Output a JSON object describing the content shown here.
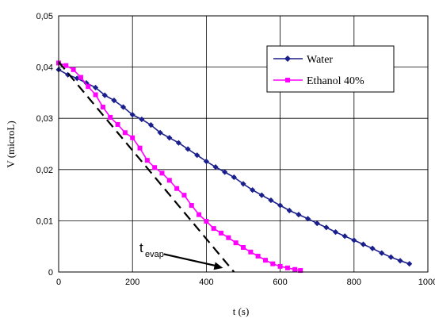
{
  "chart_data": {
    "type": "scatter",
    "xlabel": "t (s)",
    "ylabel": "V (microL)",
    "xlim": [
      0,
      1000
    ],
    "ylim": [
      0,
      0.05
    ],
    "x_ticks": [
      "0",
      "200",
      "400",
      "600",
      "800",
      "1000"
    ],
    "y_ticks": [
      "0",
      "0,01",
      "0,02",
      "0,03",
      "0,04",
      "0,05"
    ],
    "grid": true,
    "legend_position": "top-right",
    "series": [
      {
        "name": "Water",
        "color": "#1a1f8c",
        "marker": "diamond",
        "x": [
          0,
          25,
          50,
          75,
          100,
          125,
          150,
          175,
          200,
          225,
          250,
          275,
          300,
          325,
          350,
          375,
          400,
          425,
          450,
          475,
          500,
          525,
          550,
          575,
          600,
          625,
          650,
          675,
          700,
          725,
          750,
          775,
          800,
          825,
          850,
          875,
          900,
          925,
          950
        ],
        "y": [
          0.0395,
          0.0385,
          0.0378,
          0.0369,
          0.036,
          0.0345,
          0.0335,
          0.0322,
          0.0307,
          0.0298,
          0.0287,
          0.0272,
          0.0262,
          0.0252,
          0.024,
          0.0228,
          0.0216,
          0.0205,
          0.0195,
          0.0185,
          0.0172,
          0.016,
          0.015,
          0.014,
          0.013,
          0.012,
          0.0112,
          0.0104,
          0.0095,
          0.0087,
          0.0078,
          0.007,
          0.0062,
          0.0054,
          0.0046,
          0.0037,
          0.0029,
          0.0022,
          0.0016
        ]
      },
      {
        "name": "Ethanol 40%",
        "color": "#ff00ff",
        "marker": "square",
        "x": [
          0,
          20,
          40,
          60,
          80,
          100,
          120,
          140,
          160,
          180,
          200,
          220,
          240,
          260,
          280,
          300,
          320,
          340,
          360,
          380,
          400,
          420,
          440,
          460,
          480,
          500,
          520,
          540,
          560,
          580,
          600,
          620,
          640,
          655
        ],
        "y": [
          0.0408,
          0.0403,
          0.0395,
          0.038,
          0.0362,
          0.0346,
          0.0322,
          0.0302,
          0.0288,
          0.0272,
          0.0262,
          0.0242,
          0.0218,
          0.0204,
          0.0193,
          0.0179,
          0.0163,
          0.015,
          0.013,
          0.0112,
          0.0099,
          0.0085,
          0.0076,
          0.0067,
          0.0057,
          0.0048,
          0.0039,
          0.0031,
          0.0023,
          0.0016,
          0.0011,
          0.0008,
          0.0005,
          0.0003
        ]
      }
    ],
    "annotations": [
      {
        "kind": "dashed-line",
        "x": [
          0,
          475
        ],
        "y": [
          0.041,
          0
        ]
      },
      {
        "kind": "label-arrow",
        "text": "t",
        "subscript": "evap",
        "from": [
          285,
          0.0035
        ],
        "to": [
          445,
          0.0008
        ]
      }
    ]
  }
}
